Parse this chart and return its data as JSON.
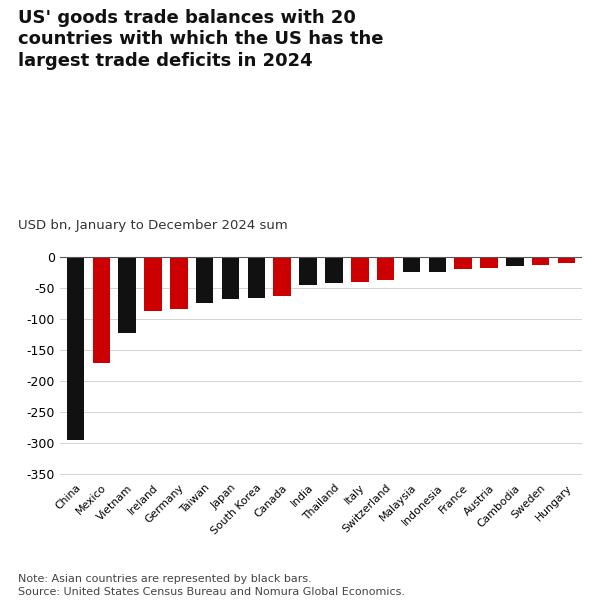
{
  "title": "US' goods trade balances with 20\ncountries with which the US has the\nlargest trade deficits in 2024",
  "subtitle": "USD bn, January to December 2024 sum",
  "note": "Note: Asian countries are represented by black bars.\nSource: United States Census Bureau and Nomura Global Economics.",
  "categories": [
    "China",
    "Mexico",
    "Vietnam",
    "Ireland",
    "Germany",
    "Taiwan",
    "Japan",
    "South Korea",
    "Canada",
    "India",
    "Thailand",
    "Italy",
    "Switzerland",
    "Malaysia",
    "Indonesia",
    "France",
    "Austria",
    "Cambodia",
    "Sweden",
    "Hungary"
  ],
  "values": [
    -295,
    -171,
    -123,
    -87,
    -84,
    -74,
    -68,
    -66,
    -63,
    -45,
    -42,
    -40,
    -38,
    -25,
    -24,
    -20,
    -18,
    -14,
    -13,
    -10
  ],
  "is_asian": [
    true,
    false,
    true,
    false,
    false,
    true,
    true,
    true,
    false,
    true,
    true,
    false,
    false,
    true,
    true,
    false,
    false,
    true,
    false,
    false
  ],
  "bar_color_asian": "#111111",
  "bar_color_nonasian": "#cc0000",
  "ylim": [
    -360,
    8
  ],
  "yticks": [
    0,
    -50,
    -100,
    -150,
    -200,
    -250,
    -300,
    -350
  ],
  "background_color": "#ffffff",
  "title_fontsize": 13.0,
  "subtitle_fontsize": 9.5,
  "note_fontsize": 8.0,
  "tick_fontsize": 9.0,
  "xtick_fontsize": 7.8
}
